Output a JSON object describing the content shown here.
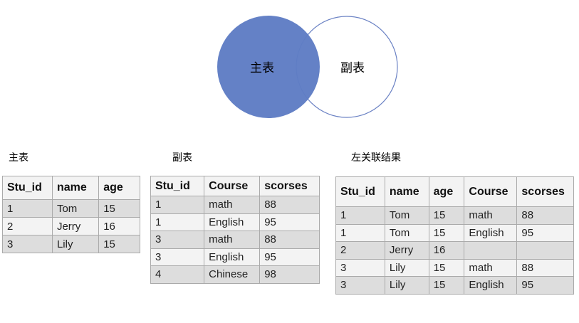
{
  "venn": {
    "left_label": "主表",
    "right_label": "副表",
    "fill_color": "#5f7dc4",
    "stroke_color": "#6b82c4"
  },
  "tables": [
    {
      "title": "主表",
      "headers": [
        "Stu_id",
        "name",
        "age"
      ],
      "rows": [
        [
          "1",
          "Tom",
          "15"
        ],
        [
          "2",
          "Jerry",
          "16"
        ],
        [
          "3",
          "Lily",
          "15"
        ]
      ]
    },
    {
      "title": "副表",
      "headers": [
        "Stu_id",
        "Course",
        "scorses"
      ],
      "rows": [
        [
          "1",
          "math",
          "88"
        ],
        [
          "1",
          "English",
          "95"
        ],
        [
          "3",
          "math",
          "88"
        ],
        [
          "3",
          "English",
          "95"
        ],
        [
          "4",
          "Chinese",
          "98"
        ]
      ]
    },
    {
      "title": "左关联结果",
      "headers": [
        "Stu_id",
        "name",
        "age",
        "Course",
        "scorses"
      ],
      "rows": [
        [
          "1",
          "Tom",
          "15",
          "math",
          "88"
        ],
        [
          "1",
          "Tom",
          "15",
          "English",
          "95"
        ],
        [
          "2",
          "Jerry",
          "16",
          "",
          ""
        ],
        [
          "3",
          "Lily",
          "15",
          "math",
          "88"
        ],
        [
          "3",
          "Lily",
          "15",
          "English",
          "95"
        ]
      ]
    }
  ]
}
